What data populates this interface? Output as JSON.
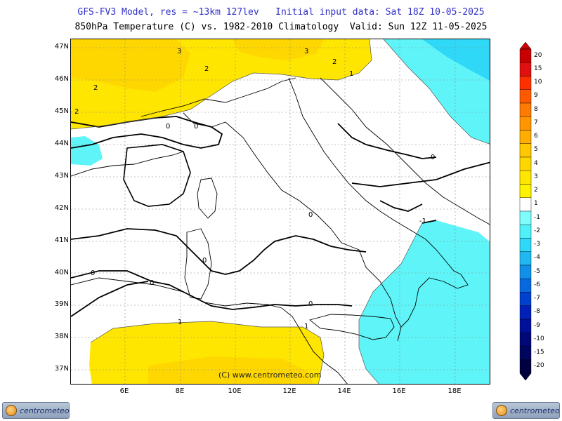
{
  "header": {
    "line1": "GFS-FV3 Model, res = ~13km 127lev   Initial input data: Sat 18Z 10-05-2025",
    "line2": "850hPa Temperature (C) vs. 1982-2010 Climatology  Valid: Sun 12Z 11-05-2025"
  },
  "axes": {
    "lat_labels": [
      "47N",
      "46N",
      "45N",
      "44N",
      "43N",
      "42N",
      "41N",
      "40N",
      "39N",
      "38N",
      "37N"
    ],
    "lon_labels": [
      "6E",
      "8E",
      "10E",
      "12E",
      "14E",
      "16E",
      "18E"
    ]
  },
  "contour_labels": [
    "3",
    "2",
    "3",
    "2",
    "2",
    "1",
    "2",
    "0",
    "0",
    "0",
    "0",
    "0",
    "0",
    "0",
    "0",
    "-1",
    "1",
    "1"
  ],
  "copyright": "(C) www.centrometeo.com",
  "colorbar": {
    "labels": [
      "20",
      "15",
      "10",
      "9",
      "8",
      "7",
      "6",
      "5",
      "4",
      "3",
      "2",
      "1",
      "-1",
      "-2",
      "-3",
      "-4",
      "-5",
      "-6",
      "-7",
      "-8",
      "-9",
      "-10",
      "-15",
      "-20"
    ],
    "colors": [
      "#c80000",
      "#e01010",
      "#ff3000",
      "#ff5a00",
      "#ff7a00",
      "#ff9500",
      "#ffae00",
      "#ffc800",
      "#ffd700",
      "#ffe600",
      "#fff200",
      "#ffffff",
      "#80fcfc",
      "#50f0f8",
      "#30d8f8",
      "#20b8f0",
      "#1090e8",
      "#0868e0",
      "#0040d0",
      "#0020b8",
      "#001098",
      "#000878",
      "#000560",
      "#000040"
    ]
  },
  "logos": {
    "text": "centrometeo"
  },
  "colors": {
    "warm": "#ffe600",
    "warm2": "#ffd700",
    "cold": "#5ff5f8",
    "cold2": "#30d8f8"
  }
}
